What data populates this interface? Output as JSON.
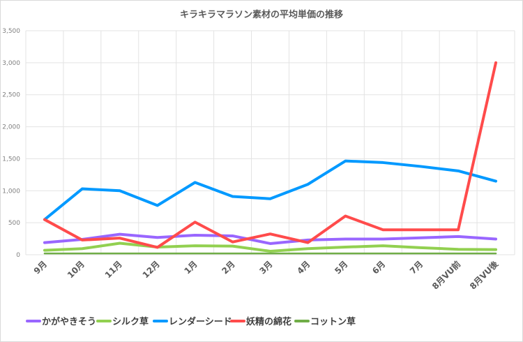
{
  "chart_data": {
    "type": "line",
    "title": "キラキラマラソン素材の平均単価の推移",
    "categories": [
      "9月",
      "10月",
      "11月",
      "12月",
      "1月",
      "2月",
      "3月",
      "4月",
      "5月",
      "6月",
      "7月",
      "8月VU前",
      "8月VU後"
    ],
    "ylim": [
      0,
      3500
    ],
    "yticks": [
      0,
      500,
      1000,
      1500,
      2000,
      2500,
      3000,
      3500
    ],
    "ytick_labels": [
      "0",
      "500",
      "1,000",
      "1,500",
      "2,000",
      "2,500",
      "3,000",
      "3,500"
    ],
    "grid": true,
    "legend": "bottom",
    "series": [
      {
        "name": "かがやきそう",
        "color": "#9966ff",
        "values": [
          190,
          240,
          320,
          270,
          305,
          295,
          175,
          230,
          245,
          245,
          265,
          285,
          245
        ]
      },
      {
        "name": "シルク草",
        "color": "#92d050",
        "values": [
          70,
          95,
          180,
          120,
          140,
          135,
          55,
          95,
          120,
          140,
          110,
          85,
          80
        ]
      },
      {
        "name": "レンダーシード",
        "color": "#0099ff",
        "values": [
          550,
          1030,
          1000,
          770,
          1130,
          910,
          875,
          1100,
          1465,
          1440,
          1380,
          1310,
          1150
        ]
      },
      {
        "name": "妖精の綿花",
        "color": "#ff4b4b",
        "values": [
          550,
          230,
          260,
          115,
          510,
          200,
          325,
          190,
          605,
          390,
          390,
          390,
          3000
        ]
      },
      {
        "name": "コットン草",
        "color": "#70ad47",
        "values": [
          20,
          20,
          20,
          20,
          20,
          20,
          20,
          20,
          20,
          20,
          20,
          20,
          20
        ]
      }
    ]
  }
}
